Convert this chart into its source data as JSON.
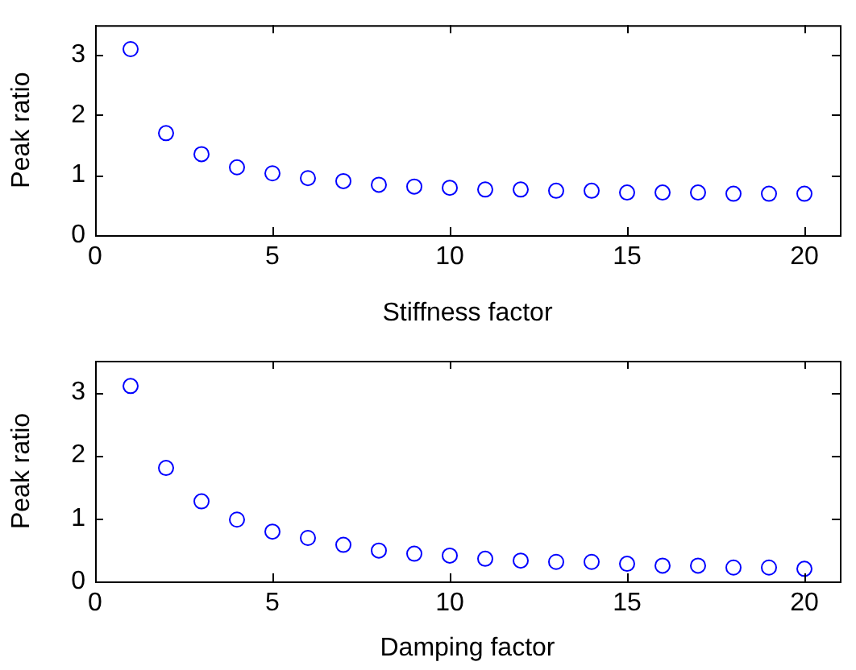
{
  "chart_data": [
    {
      "type": "scatter",
      "xlabel": "Stiffness factor",
      "ylabel": "Peak ratio",
      "x": [
        1,
        2,
        3,
        4,
        5,
        6,
        7,
        8,
        9,
        10,
        11,
        12,
        13,
        14,
        15,
        16,
        17,
        18,
        19,
        20
      ],
      "series": [
        {
          "color": "#0000ff",
          "values": [
            3.1,
            1.7,
            1.35,
            1.13,
            1.03,
            0.95,
            0.9,
            0.84,
            0.81,
            0.79,
            0.76,
            0.76,
            0.74,
            0.74,
            0.71,
            0.71,
            0.71,
            0.69,
            0.69,
            0.69
          ]
        }
      ],
      "xlim": [
        0,
        21
      ],
      "xticks": [
        0,
        5,
        10,
        15,
        20
      ],
      "ylim": [
        0,
        3.5
      ],
      "yticks": [
        0,
        1,
        2,
        3
      ],
      "marker": "circle",
      "grid": false,
      "legend": false
    },
    {
      "type": "scatter",
      "xlabel": "Damping factor",
      "ylabel": "Peak ratio",
      "x": [
        1,
        2,
        3,
        4,
        5,
        6,
        7,
        8,
        9,
        10,
        11,
        12,
        13,
        14,
        15,
        16,
        17,
        18,
        19,
        20
      ],
      "series": [
        {
          "color": "#0000ff",
          "values": [
            3.1,
            1.8,
            1.27,
            0.98,
            0.79,
            0.69,
            0.58,
            0.49,
            0.44,
            0.41,
            0.36,
            0.33,
            0.31,
            0.31,
            0.28,
            0.25,
            0.25,
            0.22,
            0.22,
            0.2
          ]
        }
      ],
      "xlim": [
        0,
        21
      ],
      "xticks": [
        0,
        5,
        10,
        15,
        20
      ],
      "ylim": [
        0,
        3.5
      ],
      "yticks": [
        0,
        1,
        2,
        3
      ],
      "marker": "circle",
      "grid": false,
      "legend": false
    }
  ]
}
